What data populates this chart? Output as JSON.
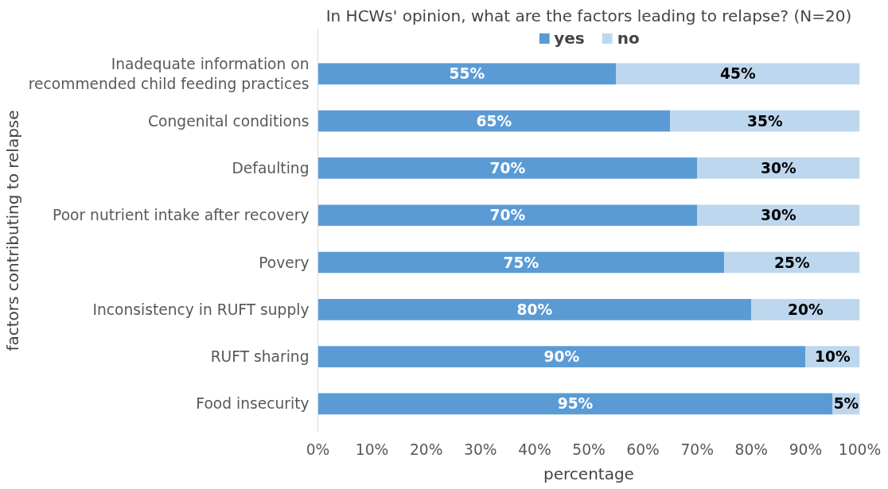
{
  "chart_data": {
    "type": "bar",
    "orientation": "horizontal",
    "stacked": true,
    "title": "In HCWs' opinion, what are the factors leading to relapse? (N=20)",
    "xlabel": "percentage",
    "ylabel": "factors contributing to relapse",
    "categories": [
      "Inadequate information on recommended child feeding practices",
      "Congenital conditions",
      "Defaulting",
      "Poor nutrient intake after recovery",
      "Povery",
      "Inconsistency in RUFT supply",
      "RUFT sharing",
      "Food insecurity"
    ],
    "series": [
      {
        "name": "yes",
        "color": "#5b9bd5",
        "values": [
          55,
          65,
          70,
          70,
          75,
          80,
          90,
          95
        ],
        "value_labels": [
          "55%",
          "65%",
          "70%",
          "70%",
          "75%",
          "80%",
          "90%",
          "95%"
        ]
      },
      {
        "name": "no",
        "color": "#bdd7ee",
        "values": [
          45,
          35,
          30,
          30,
          25,
          20,
          10,
          5
        ],
        "value_labels": [
          "45%",
          "35%",
          "30%",
          "30%",
          "25%",
          "20%",
          "10%",
          "5%"
        ]
      }
    ],
    "xlim": [
      0,
      100
    ],
    "xticks": [
      {
        "value": 0,
        "label": "0%"
      },
      {
        "value": 10,
        "label": "10%"
      },
      {
        "value": 20,
        "label": "20%"
      },
      {
        "value": 30,
        "label": "30%"
      },
      {
        "value": 40,
        "label": "40%"
      },
      {
        "value": 50,
        "label": "50%"
      },
      {
        "value": 60,
        "label": "60%"
      },
      {
        "value": 70,
        "label": "70%"
      },
      {
        "value": 80,
        "label": "80%"
      },
      {
        "value": 90,
        "label": "90%"
      },
      {
        "value": 100,
        "label": "100%"
      }
    ],
    "legend": "top",
    "grid": false
  }
}
